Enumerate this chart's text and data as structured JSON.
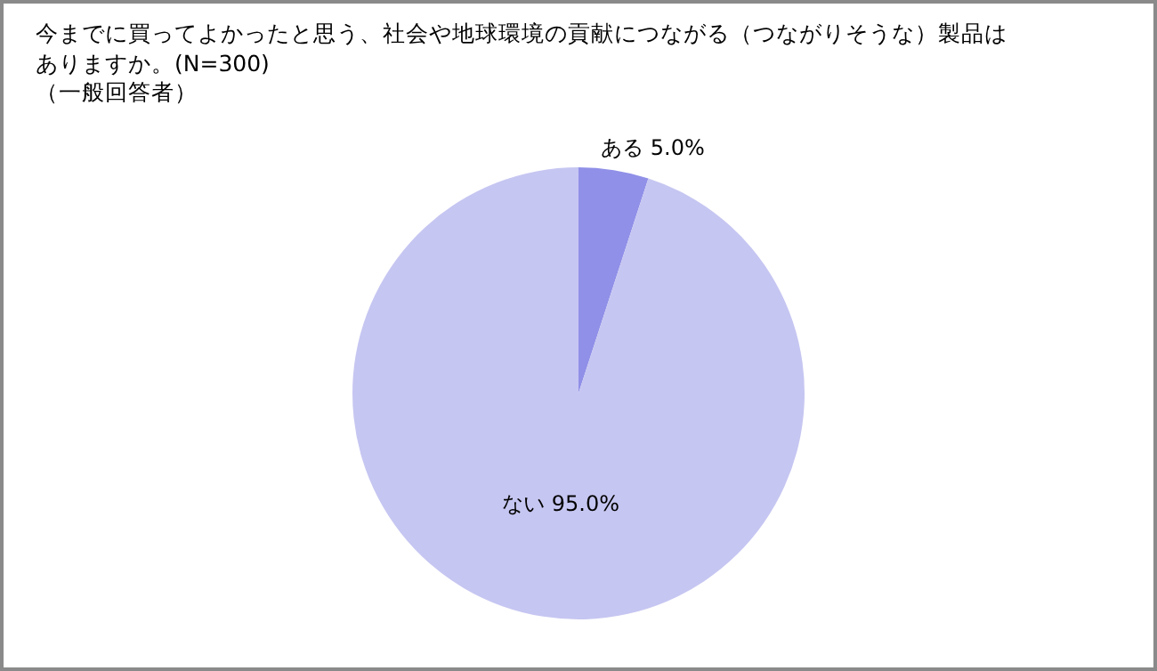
{
  "chart_data": {
    "type": "pie",
    "title": "今までに買ってよかったと思う、社会や地球環境の貢献につながる（つながりそうな）製品はありますか。(N=300)",
    "subtitle": "（一般回答者）",
    "categories": [
      "ある",
      "ない"
    ],
    "values": [
      5.0,
      95.0
    ],
    "colors": [
      "#9090e8",
      "#c6c6f2"
    ],
    "value_labels": [
      "5.0%",
      "95.0%"
    ],
    "legend": false
  }
}
